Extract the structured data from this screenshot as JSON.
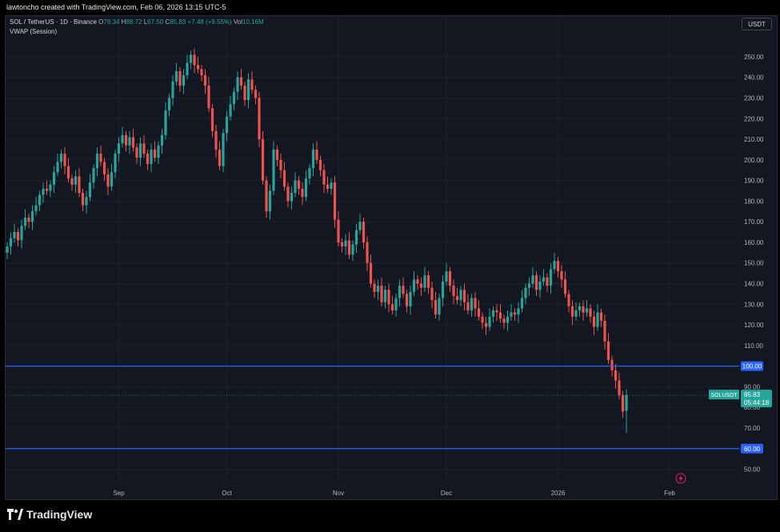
{
  "header": {
    "attribution": "lawtoncho created with TradingView.com, Feb 06, 2026 13:15 UTC-5"
  },
  "legend": {
    "symbol": "SOL / TetherUS · 1D · Binance",
    "o_label": "O",
    "o": "78.34",
    "h_label": "H",
    "h": "88.72",
    "l_label": "L",
    "l": "67.50",
    "c_label": "C",
    "c": "85.83",
    "change": "+7.48 (+9.55%)",
    "vol_label": "Vol",
    "vol": "10.16M",
    "indicator": "VWAP (Session)"
  },
  "currency_button": "USDT",
  "footer": {
    "logo_text": "TradingView"
  },
  "colors": {
    "up": "#26a69a",
    "down": "#ef5350",
    "level_line": "#2962ff",
    "background": "#131722",
    "grid": "#1e222d",
    "text": "#b2b5be"
  },
  "chart_data": {
    "type": "candlestick",
    "title": "SOL / TetherUS · 1D · Binance",
    "ylim": [
      44,
      262
    ],
    "y_ticks": [
      50,
      60,
      70,
      80,
      90,
      100,
      110,
      120,
      130,
      140,
      150,
      160,
      170,
      180,
      190,
      200,
      210,
      220,
      230,
      240,
      250
    ],
    "y_tick_labels": [
      "50.00",
      "60.00",
      "70.00",
      "80.00",
      "90.00",
      "100.00",
      "110.00",
      "120.00",
      "130.00",
      "140.00",
      "150.00",
      "160.00",
      "170.00",
      "180.00",
      "190.00",
      "200.00",
      "210.00",
      "220.00",
      "230.00",
      "240.00",
      "250.00"
    ],
    "x_ticks": [
      {
        "label": "Sep",
        "day": 31
      },
      {
        "label": "Oct",
        "day": 61
      },
      {
        "label": "Nov",
        "day": 92
      },
      {
        "label": "Dec",
        "day": 122
      },
      {
        "label": "2026",
        "day": 153
      },
      {
        "label": "Feb",
        "day": 184
      }
    ],
    "horizontal_levels": [
      {
        "value": 100,
        "label": "100.00"
      },
      {
        "value": 60,
        "label": "60.00"
      }
    ],
    "last_price": {
      "symbol": "SOLUSDT",
      "value": 85.83,
      "label": "85.83",
      "countdown": "05:44:18"
    },
    "closes": [
      158,
      162,
      165,
      161,
      168,
      172,
      170,
      175,
      178,
      183,
      186,
      185,
      188,
      194,
      199,
      203,
      197,
      191,
      188,
      192,
      184,
      178,
      182,
      189,
      196,
      203,
      199,
      193,
      187,
      194,
      203,
      208,
      212,
      207,
      211,
      206,
      201,
      208,
      203,
      198,
      205,
      201,
      207,
      212,
      224,
      230,
      238,
      243,
      236,
      241,
      247,
      251,
      246,
      244,
      241,
      236,
      225,
      214,
      205,
      197,
      213,
      221,
      227,
      233,
      240,
      236,
      229,
      239,
      234,
      230,
      210,
      190,
      175,
      185,
      205,
      200,
      195,
      187,
      180,
      184,
      190,
      186,
      182,
      191,
      196,
      205,
      200,
      195,
      188,
      186,
      189,
      171,
      160,
      158,
      161,
      154,
      159,
      166,
      170,
      160,
      150,
      140,
      136,
      139,
      131,
      137,
      130,
      127,
      133,
      139,
      135,
      129,
      136,
      142,
      140,
      138,
      144,
      138,
      132,
      125,
      133,
      141,
      146,
      139,
      134,
      132,
      137,
      131,
      127,
      133,
      128,
      124,
      121,
      119,
      124,
      127,
      126,
      123,
      121,
      124,
      126,
      125,
      128,
      133,
      138,
      140,
      144,
      137,
      141,
      143,
      139,
      147,
      151,
      146,
      142,
      135,
      129,
      124,
      127,
      129,
      126,
      128,
      124,
      119,
      126,
      122,
      112,
      103,
      98,
      93,
      86,
      78,
      86
    ]
  }
}
